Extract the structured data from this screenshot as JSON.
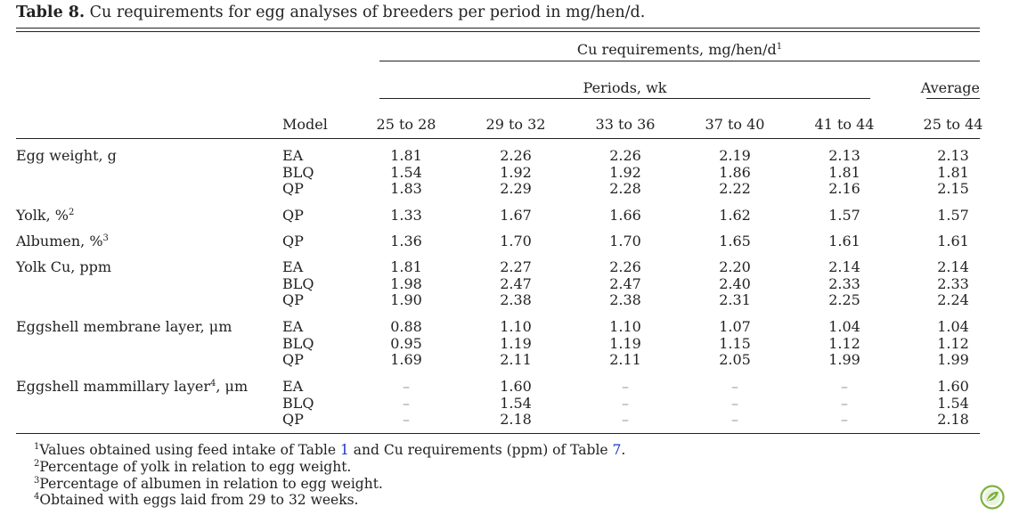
{
  "caption": {
    "label": "Table 8.",
    "text": "Cu requirements for egg analyses of breeders per period in mg/hen/d."
  },
  "header": {
    "group_title": "Cu requirements, mg/hen/d",
    "group_title_sup": "1",
    "periods_label": "Periods, wk",
    "average_label": "Average",
    "model_label": "Model",
    "columns": [
      "25 to 28",
      "29 to 32",
      "33 to 36",
      "37 to 40",
      "41 to 44",
      "25 to 44"
    ]
  },
  "groups": [
    {
      "label": "Egg weight, g",
      "sup": "",
      "suffix": "",
      "rows": [
        {
          "model": "EA",
          "values": [
            "1.81",
            "2.26",
            "2.26",
            "2.19",
            "2.13",
            "2.13"
          ]
        },
        {
          "model": "BLQ",
          "values": [
            "1.54",
            "1.92",
            "1.92",
            "1.86",
            "1.81",
            "1.81"
          ]
        },
        {
          "model": "QP",
          "values": [
            "1.83",
            "2.29",
            "2.28",
            "2.22",
            "2.16",
            "2.15"
          ]
        }
      ]
    },
    {
      "label": "Yolk, %",
      "sup": "2",
      "suffix": "",
      "rows": [
        {
          "model": "QP",
          "values": [
            "1.33",
            "1.67",
            "1.66",
            "1.62",
            "1.57",
            "1.57"
          ]
        }
      ]
    },
    {
      "label": "Albumen, %",
      "sup": "3",
      "suffix": "",
      "rows": [
        {
          "model": "QP",
          "values": [
            "1.36",
            "1.70",
            "1.70",
            "1.65",
            "1.61",
            "1.61"
          ]
        }
      ]
    },
    {
      "label": "Yolk Cu, ppm",
      "sup": "",
      "suffix": "",
      "rows": [
        {
          "model": "EA",
          "values": [
            "1.81",
            "2.27",
            "2.26",
            "2.20",
            "2.14",
            "2.14"
          ]
        },
        {
          "model": "BLQ",
          "values": [
            "1.98",
            "2.47",
            "2.47",
            "2.40",
            "2.33",
            "2.33"
          ]
        },
        {
          "model": "QP",
          "values": [
            "1.90",
            "2.38",
            "2.38",
            "2.31",
            "2.25",
            "2.24"
          ]
        }
      ]
    },
    {
      "label": "Eggshell membrane layer, μm",
      "sup": "",
      "suffix": "",
      "rows": [
        {
          "model": "EA",
          "values": [
            "0.88",
            "1.10",
            "1.10",
            "1.07",
            "1.04",
            "1.04"
          ]
        },
        {
          "model": "BLQ",
          "values": [
            "0.95",
            "1.19",
            "1.19",
            "1.15",
            "1.12",
            "1.12"
          ]
        },
        {
          "model": "QP",
          "values": [
            "1.69",
            "2.11",
            "2.11",
            "2.05",
            "1.99",
            "1.99"
          ]
        }
      ]
    },
    {
      "label": "Eggshell mammillary layer",
      "sup": "4",
      "suffix": ", μm",
      "rows": [
        {
          "model": "EA",
          "values": [
            "–",
            "1.60",
            "–",
            "–",
            "–",
            "1.60"
          ]
        },
        {
          "model": "BLQ",
          "values": [
            "–",
            "1.54",
            "–",
            "–",
            "–",
            "1.54"
          ]
        },
        {
          "model": "QP",
          "values": [
            "–",
            "2.18",
            "–",
            "–",
            "–",
            "2.18"
          ]
        }
      ]
    }
  ],
  "footnotes": [
    {
      "num": "1",
      "parts": [
        {
          "text": "Values obtained using feed intake of Table ",
          "link": false
        },
        {
          "text": "1",
          "link": true
        },
        {
          "text": " and Cu requirements (ppm) of Table ",
          "link": false
        },
        {
          "text": "7",
          "link": true
        },
        {
          "text": ".",
          "link": false
        }
      ]
    },
    {
      "num": "2",
      "parts": [
        {
          "text": "Percentage of yolk in relation to egg weight.",
          "link": false
        }
      ]
    },
    {
      "num": "3",
      "parts": [
        {
          "text": "Percentage of albumen in relation to egg weight.",
          "link": false
        }
      ]
    },
    {
      "num": "4",
      "parts": [
        {
          "text": "Obtained with eggs laid from 29 to 32 weeks.",
          "link": false
        }
      ]
    }
  ],
  "logo_icon": "leaf-badge-icon",
  "link_color": "#1a35c4"
}
